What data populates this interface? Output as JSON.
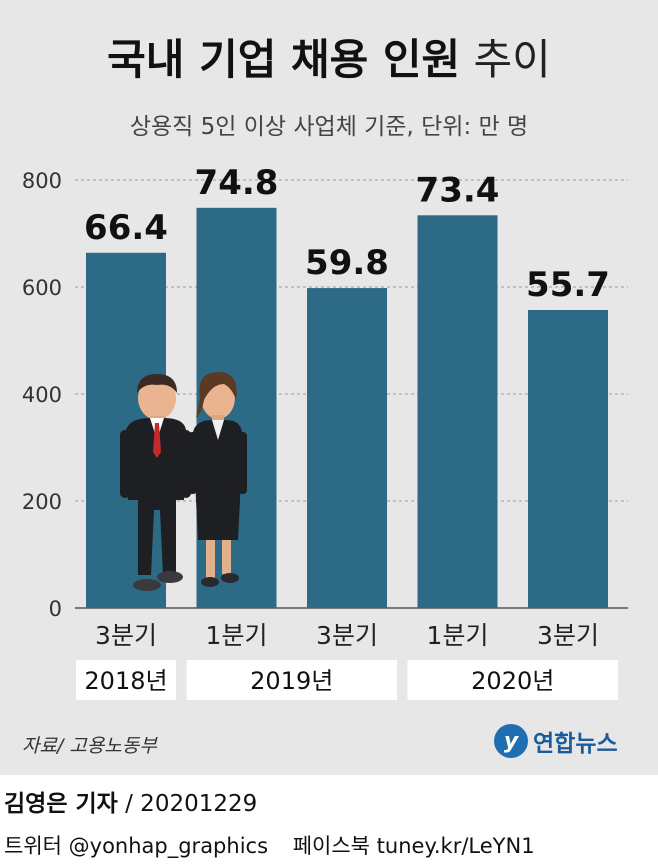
{
  "title": {
    "strong": "국내 기업 채용 인원",
    "light": "추이"
  },
  "subtitle": "상용직 5인 이상 사업체 기준, 단위: 만 명",
  "chart_data": {
    "type": "bar",
    "categories": [
      "3분기",
      "1분기",
      "3분기",
      "1분기",
      "3분기"
    ],
    "years": [
      {
        "label": "2018년",
        "span": [
          0,
          0
        ]
      },
      {
        "label": "2019년",
        "span": [
          1,
          2
        ]
      },
      {
        "label": "2020년",
        "span": [
          3,
          4
        ]
      }
    ],
    "values": [
      66.4,
      74.8,
      59.8,
      73.4,
      55.7
    ],
    "data_labels": [
      "66.4",
      "74.8",
      "59.8",
      "73.4",
      "55.7"
    ],
    "yticks": [
      0,
      200,
      400,
      600,
      800
    ],
    "ylim": [
      0,
      800
    ],
    "ylim_note": "y-axis ticks printed in thousands of persons; bar heights follow values ×10",
    "grid": true,
    "bar_color": "#2c6a86",
    "illustration": "businessman-and-businesswoman-figures"
  },
  "source": "자료/ 고용노동부",
  "logo": {
    "mark": "y",
    "text": "연합뉴스"
  },
  "reporter": {
    "name": "김영은 기자",
    "date": "/ 20201229"
  },
  "footer": {
    "twitter": "트위터 @yonhap_graphics",
    "facebook": "페이스북 tuney.kr/LeYN1"
  }
}
